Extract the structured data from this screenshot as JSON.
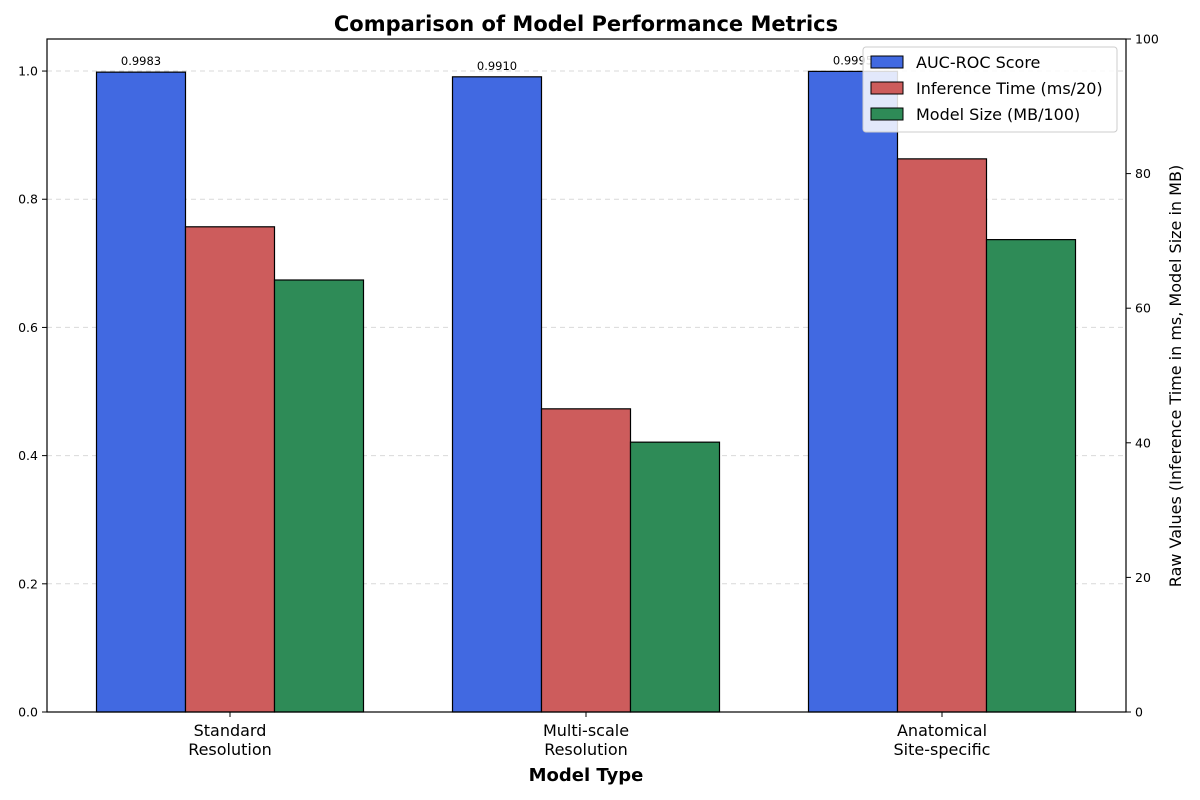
{
  "chart_data": {
    "type": "bar",
    "title": "Comparison of Model Performance Metrics",
    "xlabel": "Model Type",
    "ylabel": "",
    "ylabel_right": "Raw Values (Inference Time in ms, Model Size in MB)",
    "ylim": [
      0,
      1.05
    ],
    "ylim_right": [
      0,
      100
    ],
    "yticks": [
      "0.0",
      "0.2",
      "0.4",
      "0.6",
      "0.8",
      "1.0"
    ],
    "yticks_right": [
      "0",
      "20",
      "40",
      "60",
      "80",
      "100"
    ],
    "grid": "horizontal dashed",
    "legend_position": "top-right",
    "categories": [
      [
        "Standard",
        "Resolution"
      ],
      [
        "Multi-scale",
        "Resolution"
      ],
      [
        "Anatomical",
        "Site-specific"
      ]
    ],
    "series": [
      {
        "name": "AUC-ROC Score",
        "color": "#4169e1",
        "values": [
          0.9983,
          0.991,
          0.9995
        ],
        "labels": [
          "0.9983",
          "0.9910",
          "0.9995"
        ]
      },
      {
        "name": "Inference Time (ms/20)",
        "color": "#cd5c5c",
        "values": [
          0.757,
          0.473,
          0.863
        ]
      },
      {
        "name": "Model Size (MB/100)",
        "color": "#2e8b57",
        "values": [
          0.674,
          0.421,
          0.737
        ]
      }
    ]
  }
}
